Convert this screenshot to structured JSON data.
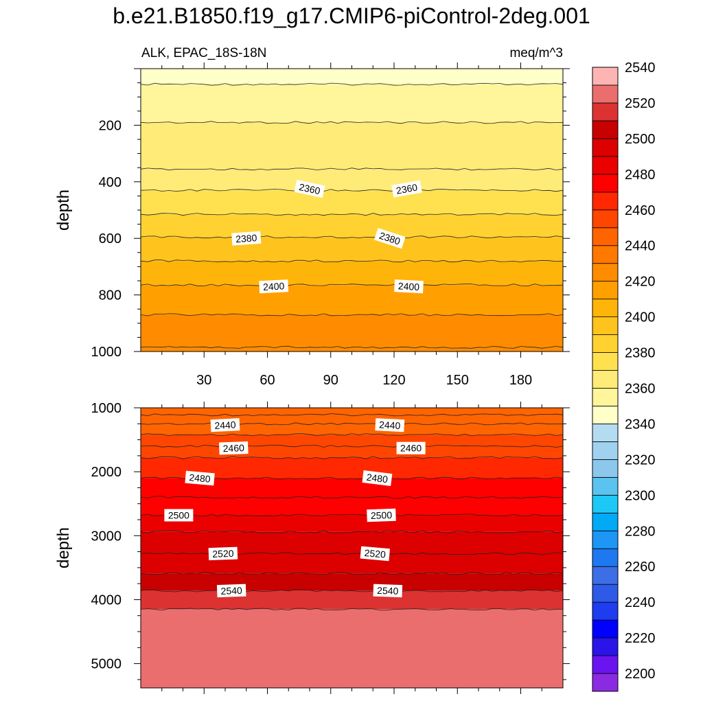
{
  "figure": {
    "title": "b.e21.B1850.f19_g17.CMIP6-piControl-2deg.001",
    "left_subtitle": "ALK, EPAC_18S-18N",
    "right_subtitle": "meq/m^3"
  },
  "colors": {
    "palette": [
      "#8a2be2",
      "#6a14f0",
      "#2a14e8",
      "#0000ff",
      "#1e3cf0",
      "#2d5ae6",
      "#3c6ee6",
      "#1e78f0",
      "#1e96f5",
      "#00aaf5",
      "#1ec8f5",
      "#5ac3f0",
      "#8cc8ec",
      "#a0d2f0",
      "#b4dcf0",
      "#ffffc8",
      "#fff59b",
      "#ffeb78",
      "#ffe150",
      "#ffd232",
      "#ffc31e",
      "#ffb40a",
      "#ffa000",
      "#ff8c00",
      "#ff7800",
      "#ff6400",
      "#ff4600",
      "#ff2800",
      "#ff0000",
      "#eb0000",
      "#dc0000",
      "#c80000",
      "#dc3232",
      "#eb6e6e",
      "#ffb4b4"
    ],
    "level_start": 2190,
    "level_step": 10
  },
  "chart_data": [
    {
      "type": "contour",
      "name": "upper panel",
      "xlabel": "",
      "ylabel": "depth",
      "xlim": [
        0,
        200
      ],
      "ylim": [
        1000,
        0
      ],
      "xticks": [
        30,
        60,
        90,
        120,
        150,
        180
      ],
      "yticks": [
        200,
        400,
        600,
        800,
        1000
      ],
      "bands": [
        {
          "from": 0,
          "to": 55,
          "value": 2335
        },
        {
          "from": 55,
          "to": 190,
          "value": 2345
        },
        {
          "from": 190,
          "to": 355,
          "value": 2355
        },
        {
          "from": 355,
          "to": 430,
          "value": 2355
        },
        {
          "from": 430,
          "to": 515,
          "value": 2365
        },
        {
          "from": 515,
          "to": 595,
          "value": 2375
        },
        {
          "from": 595,
          "to": 680,
          "value": 2385
        },
        {
          "from": 680,
          "to": 765,
          "value": 2395
        },
        {
          "from": 765,
          "to": 870,
          "value": 2405
        },
        {
          "from": 870,
          "to": 1000,
          "value": 2415
        }
      ],
      "contour_lines": [
        55,
        190,
        355,
        430,
        515,
        595,
        680,
        765,
        870,
        985
      ],
      "labels": [
        {
          "text": "2360",
          "x": 80,
          "depth": 425,
          "angle": 12
        },
        {
          "text": "2360",
          "x": 126,
          "depth": 425,
          "angle": -10
        },
        {
          "text": "2380",
          "x": 50,
          "depth": 600,
          "angle": -4
        },
        {
          "text": "2380",
          "x": 118,
          "depth": 600,
          "angle": 18
        },
        {
          "text": "2400",
          "x": 63,
          "depth": 770,
          "angle": -3
        },
        {
          "text": "2400",
          "x": 127,
          "depth": 770,
          "angle": 3
        }
      ]
    },
    {
      "type": "contour",
      "name": "lower panel",
      "xlabel": "",
      "ylabel": "depth",
      "xlim": [
        0,
        200
      ],
      "ylim": [
        5380,
        1000
      ],
      "xticks": [],
      "yticks": [
        1000,
        2000,
        3000,
        4000,
        5000
      ],
      "bands": [
        {
          "from": 1000,
          "to": 1420,
          "value": 2435
        },
        {
          "from": 1420,
          "to": 1780,
          "value": 2445
        },
        {
          "from": 1780,
          "to": 2100,
          "value": 2455
        },
        {
          "from": 2100,
          "to": 2680,
          "value": 2465
        },
        {
          "from": 2680,
          "to": 2940,
          "value": 2475
        },
        {
          "from": 2940,
          "to": 3590,
          "value": 2485
        },
        {
          "from": 3590,
          "to": 3860,
          "value": 2495
        },
        {
          "from": 3860,
          "to": 4150,
          "value": 2505
        },
        {
          "from": 4150,
          "to": 5380,
          "value": 2515
        }
      ],
      "contour_lines": [
        1110,
        1250,
        1420,
        1600,
        1780,
        2100,
        2400,
        2680,
        2940,
        3280,
        3590,
        3860,
        4150
      ],
      "labels": [
        {
          "text": "2440",
          "x": 40,
          "depth": 1270,
          "angle": -3
        },
        {
          "text": "2440",
          "x": 118,
          "depth": 1270,
          "angle": 3
        },
        {
          "text": "2460",
          "x": 44,
          "depth": 1630,
          "angle": -2
        },
        {
          "text": "2460",
          "x": 128,
          "depth": 1630,
          "angle": 0
        },
        {
          "text": "2480",
          "x": 28,
          "depth": 2100,
          "angle": 5
        },
        {
          "text": "2480",
          "x": 112,
          "depth": 2100,
          "angle": 7
        },
        {
          "text": "2500",
          "x": 18,
          "depth": 2680,
          "angle": 0
        },
        {
          "text": "2500",
          "x": 114,
          "depth": 2680,
          "angle": -2
        },
        {
          "text": "2520",
          "x": 39,
          "depth": 3280,
          "angle": -2
        },
        {
          "text": "2520",
          "x": 111,
          "depth": 3280,
          "angle": 5
        },
        {
          "text": "2540",
          "x": 43,
          "depth": 3860,
          "angle": -2
        },
        {
          "text": "2540",
          "x": 117,
          "depth": 3860,
          "angle": 2
        }
      ]
    },
    {
      "type": "colorbar",
      "name": "colorbar",
      "levels": [
        2200,
        2210,
        2220,
        2230,
        2240,
        2250,
        2260,
        2270,
        2280,
        2290,
        2300,
        2310,
        2320,
        2330,
        2340,
        2350,
        2360,
        2370,
        2380,
        2390,
        2400,
        2410,
        2420,
        2430,
        2440,
        2450,
        2460,
        2470,
        2480,
        2490,
        2500,
        2510,
        2520,
        2530,
        2540
      ],
      "tick_labels": [
        "2200",
        "2220",
        "2240",
        "2260",
        "2280",
        "2300",
        "2320",
        "2340",
        "2360",
        "2380",
        "2400",
        "2420",
        "2440",
        "2460",
        "2480",
        "2500",
        "2520",
        "2540"
      ]
    }
  ]
}
